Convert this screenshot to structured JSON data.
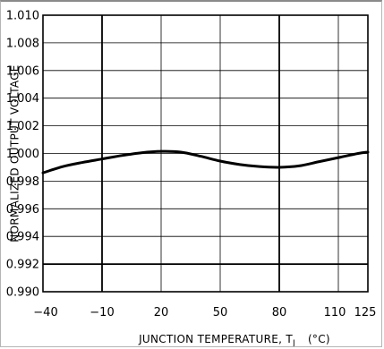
{
  "chart_data": {
    "type": "line",
    "title": "",
    "xlabel_main": "JUNCTION TEMPERATURE, T",
    "xlabel_sub": "J",
    "xlabel_unit": "(°C)",
    "ylabel": "NORMALIZED OUTPUT VOLTAGE",
    "xlim": [
      -40,
      125
    ],
    "ylim": [
      0.99,
      1.01
    ],
    "x_ticks": [
      -40,
      -10,
      20,
      50,
      80,
      110,
      125
    ],
    "x_tick_labels": [
      "−40",
      "−10",
      "20",
      "50",
      "80",
      "110",
      "125"
    ],
    "y_ticks": [
      0.99,
      0.992,
      0.994,
      0.996,
      0.998,
      1.0,
      1.002,
      1.004,
      1.006,
      1.008,
      1.01
    ],
    "y_tick_labels": [
      "0.990",
      "0.992",
      "0.994",
      "0.996",
      "0.998",
      "1.000",
      "1.002",
      "1.004",
      "1.006",
      "1.008",
      "1.010"
    ],
    "thick_vertical_grid_x": [
      -10,
      80
    ],
    "thick_horizontal_grid_y": [
      0.992
    ],
    "grid": true,
    "series": [
      {
        "x": [
          -40,
          -30,
          -20,
          -10,
          0,
          10,
          20,
          30,
          40,
          50,
          60,
          70,
          80,
          90,
          100,
          110,
          120,
          125
        ],
        "y": [
          0.9986,
          0.99905,
          0.99935,
          0.9996,
          0.99985,
          1.00005,
          1.00015,
          1.0001,
          0.9998,
          0.99945,
          0.9992,
          0.99905,
          0.999,
          0.9991,
          0.9994,
          0.9997,
          1.0,
          1.0001
        ]
      }
    ]
  }
}
